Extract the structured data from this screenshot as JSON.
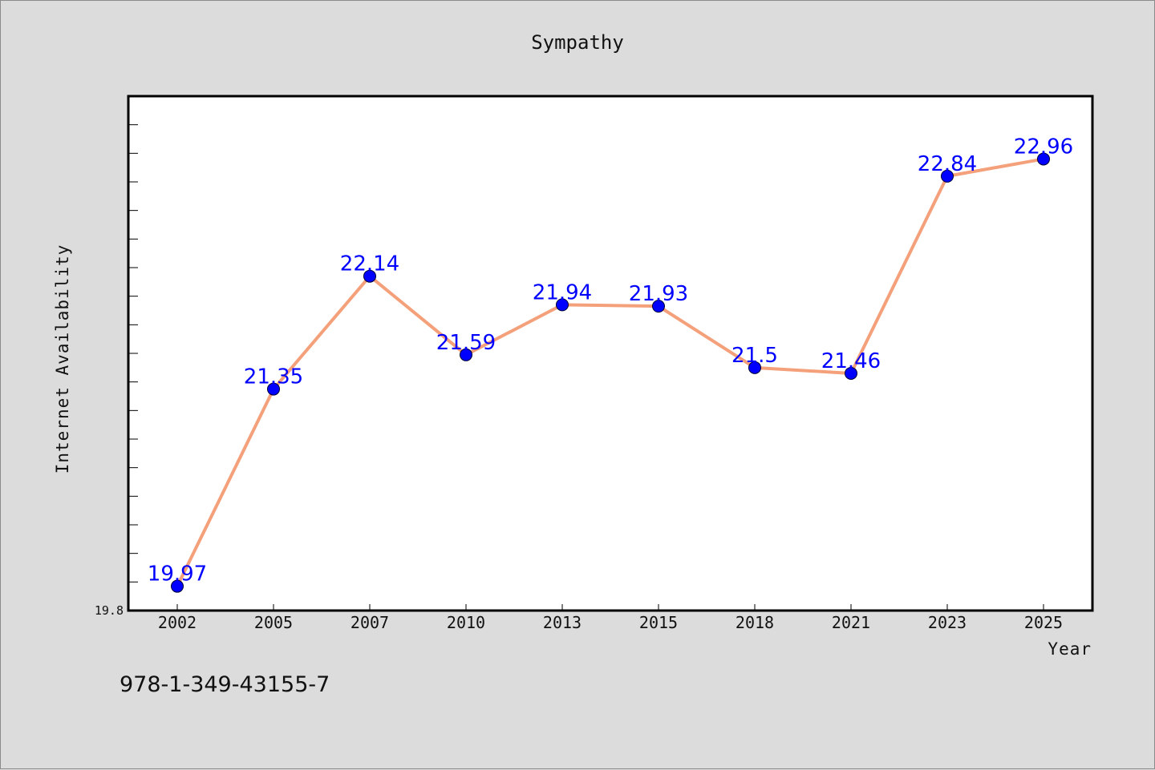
{
  "chart_data": {
    "type": "line",
    "title": "Sympathy",
    "xlabel": "Year",
    "ylabel": "Internet Availability",
    "categories": [
      "2002",
      "2005",
      "2007",
      "2010",
      "2013",
      "2015",
      "2018",
      "2021",
      "2023",
      "2025"
    ],
    "series": [
      {
        "values": [
          19.97,
          21.35,
          22.14,
          21.59,
          21.94,
          21.93,
          21.5,
          21.46,
          22.84,
          22.96
        ],
        "data_labels": [
          "19.97",
          "21.35",
          "22.14",
          "21.59",
          "21.94",
          "21.93",
          "21.5",
          "21.46",
          "22.84",
          "22.96"
        ]
      }
    ],
    "ylim": [
      19.8,
      23.4
    ],
    "y_tick_label": "19.8",
    "grid": false,
    "colors": {
      "line": "#f4a07a",
      "marker": "#0000ff",
      "label": "#0000ff"
    }
  },
  "footer": {
    "isbn": "978-1-349-43155-7"
  }
}
